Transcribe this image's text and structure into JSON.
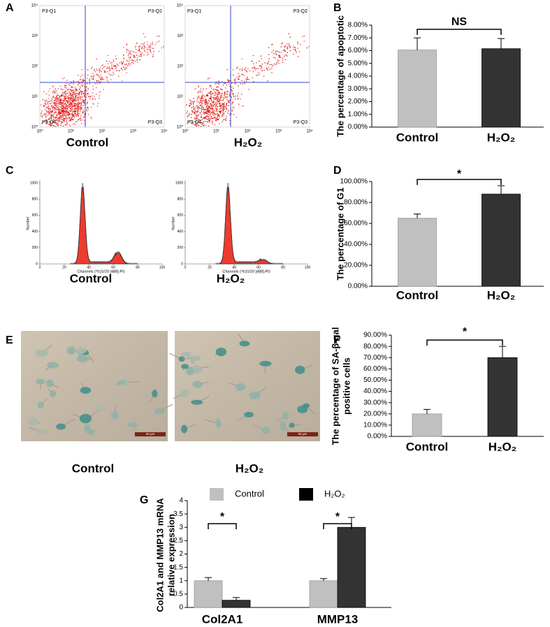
{
  "figure": {
    "panel_letters": [
      "A",
      "B",
      "C",
      "D",
      "E",
      "F",
      "G"
    ]
  },
  "flow_cytometry": {
    "plots": [
      {
        "label": "Control",
        "quadrants": [
          "P3-Q1",
          "P3-Q2",
          "P3-Q3",
          "P3-Q4"
        ]
      },
      {
        "label": "H₂O₂",
        "quadrants": [
          "P3-Q1",
          "P3-Q2",
          "P3-Q3",
          "P3-Q4"
        ]
      }
    ],
    "ticks": [
      "10⁰",
      "10¹",
      "10²",
      "10³",
      "10⁴"
    ]
  },
  "cell_cycle": {
    "plots": [
      {
        "label": "Control"
      },
      {
        "label": "H₂O₂"
      }
    ],
    "xlabel": "Channels (*610/20 [488]-PI)",
    "ylabel": "Number",
    "xlim": [
      0,
      100
    ],
    "xticks": [
      0,
      20,
      40,
      60,
      80,
      100
    ],
    "ylim": [
      0,
      1000
    ],
    "yticks": [
      0,
      200,
      400,
      600,
      800,
      1000
    ]
  },
  "staining": {
    "plots": [
      {
        "label": "Control",
        "scale_bar": "50 μm"
      },
      {
        "label": "H₂O₂",
        "scale_bar": "50 μm"
      }
    ]
  },
  "chart_data": [
    {
      "type": "bar",
      "ylabel": "The percentage of apoptotic",
      "categories": [
        "Control",
        "H₂O₂"
      ],
      "values": [
        6.05,
        6.15
      ],
      "errors": [
        0.95,
        0.8
      ],
      "colors": [
        "#c0c0c0",
        "#333333"
      ],
      "significance": "NS",
      "ylim": [
        0,
        8
      ],
      "yticks": [
        {
          "value": 0,
          "label": "0.00%"
        },
        {
          "value": 1,
          "label": "1.00%"
        },
        {
          "value": 2,
          "label": "2.00%"
        },
        {
          "value": 3,
          "label": "3.00%"
        },
        {
          "value": 4,
          "label": "4.00%"
        },
        {
          "value": 5,
          "label": "5.00%"
        },
        {
          "value": 6,
          "label": "6.00%"
        },
        {
          "value": 7,
          "label": "7.00%"
        },
        {
          "value": 8,
          "label": "8.00%"
        }
      ]
    },
    {
      "type": "bar",
      "ylabel": "The percentage of G1",
      "categories": [
        "Control",
        "H₂O₂"
      ],
      "values": [
        65,
        88
      ],
      "errors": [
        4,
        8
      ],
      "colors": [
        "#c0c0c0",
        "#333333"
      ],
      "significance": "*",
      "ylim": [
        0,
        100
      ],
      "yticks": [
        {
          "value": 0,
          "label": "0.00%"
        },
        {
          "value": 20,
          "label": "20.00%"
        },
        {
          "value": 40,
          "label": "40.00%"
        },
        {
          "value": 60,
          "label": "60.00%"
        },
        {
          "value": 80,
          "label": "80.00%"
        },
        {
          "value": 100,
          "label": "100.00%"
        }
      ]
    },
    {
      "type": "bar",
      "ylabel": [
        "The percentage of SA-β-gal",
        "positive cells"
      ],
      "categories": [
        "Control",
        "H₂O₂"
      ],
      "values": [
        20,
        70
      ],
      "errors": [
        4,
        10
      ],
      "colors": [
        "#c0c0c0",
        "#333333"
      ],
      "significance": "*",
      "ylim": [
        0,
        90
      ],
      "yticks": [
        {
          "value": 0,
          "label": "0.00%"
        },
        {
          "value": 10,
          "label": "10.00%"
        },
        {
          "value": 20,
          "label": "20.00%"
        },
        {
          "value": 30,
          "label": "30.00%"
        },
        {
          "value": 40,
          "label": "40.00%"
        },
        {
          "value": 50,
          "label": "50.00%"
        },
        {
          "value": 60,
          "label": "60.00%"
        },
        {
          "value": 70,
          "label": "70.00%"
        },
        {
          "value": 80,
          "label": "80.00%"
        },
        {
          "value": 90,
          "label": "90.00%"
        }
      ]
    },
    {
      "type": "grouped-bar",
      "ylabel": [
        "Col2A1 and MMP13 mRNA",
        "relative expression"
      ],
      "categories": [
        "Col2A1",
        "MMP13"
      ],
      "series": [
        {
          "name": "Control",
          "color": "#c0c0c0",
          "values": [
            1.0,
            1.0
          ],
          "errors": [
            0.12,
            0.08
          ]
        },
        {
          "name": "H₂O₂",
          "color": "#333333",
          "values": [
            0.27,
            3.0
          ],
          "errors": [
            0.1,
            0.37
          ]
        }
      ],
      "significance": [
        "*",
        "*"
      ],
      "ylim": [
        0,
        4
      ],
      "yticks": [
        0,
        0.5,
        1,
        1.5,
        2,
        2.5,
        3,
        3.5,
        4
      ]
    }
  ]
}
